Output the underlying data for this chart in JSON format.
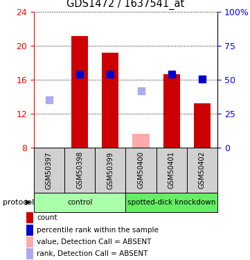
{
  "title": "GDS1472 / 1637541_at",
  "samples": [
    "GSM50397",
    "GSM50398",
    "GSM50399",
    "GSM50400",
    "GSM50401",
    "GSM50402"
  ],
  "left_ylim": [
    8,
    24
  ],
  "left_yticks": [
    8,
    12,
    16,
    20,
    24
  ],
  "right_ylim": [
    0,
    100
  ],
  "right_yticks": [
    0,
    25,
    50,
    75,
    100
  ],
  "right_yticklabels": [
    "0",
    "25",
    "50",
    "75",
    "100%"
  ],
  "red_bars": [
    null,
    21.1,
    19.2,
    null,
    16.6,
    13.2
  ],
  "pink_bars": [
    null,
    null,
    null,
    9.6,
    null,
    null
  ],
  "blue_squares": [
    null,
    16.65,
    16.65,
    null,
    16.65,
    16.1
  ],
  "light_blue_squares": [
    13.6,
    null,
    null,
    14.7,
    null,
    null
  ],
  "red_bar_color": "#cc0000",
  "pink_bar_color": "#ffaaaa",
  "blue_sq_color": "#0000cc",
  "light_blue_sq_color": "#aaaaee",
  "protocol_groups": [
    {
      "label": "control",
      "start": 0,
      "end": 3,
      "color": "#aaffaa"
    },
    {
      "label": "spotted-dick knockdown",
      "start": 3,
      "end": 6,
      "color": "#66ee66"
    }
  ],
  "legend_items": [
    {
      "color": "#cc0000",
      "label": "count"
    },
    {
      "color": "#0000cc",
      "label": "percentile rank within the sample"
    },
    {
      "color": "#ffaaaa",
      "label": "value, Detection Call = ABSENT"
    },
    {
      "color": "#aaaaee",
      "label": "rank, Detection Call = ABSENT"
    }
  ],
  "fig_width": 3.61,
  "fig_height": 3.75,
  "dpi": 100
}
